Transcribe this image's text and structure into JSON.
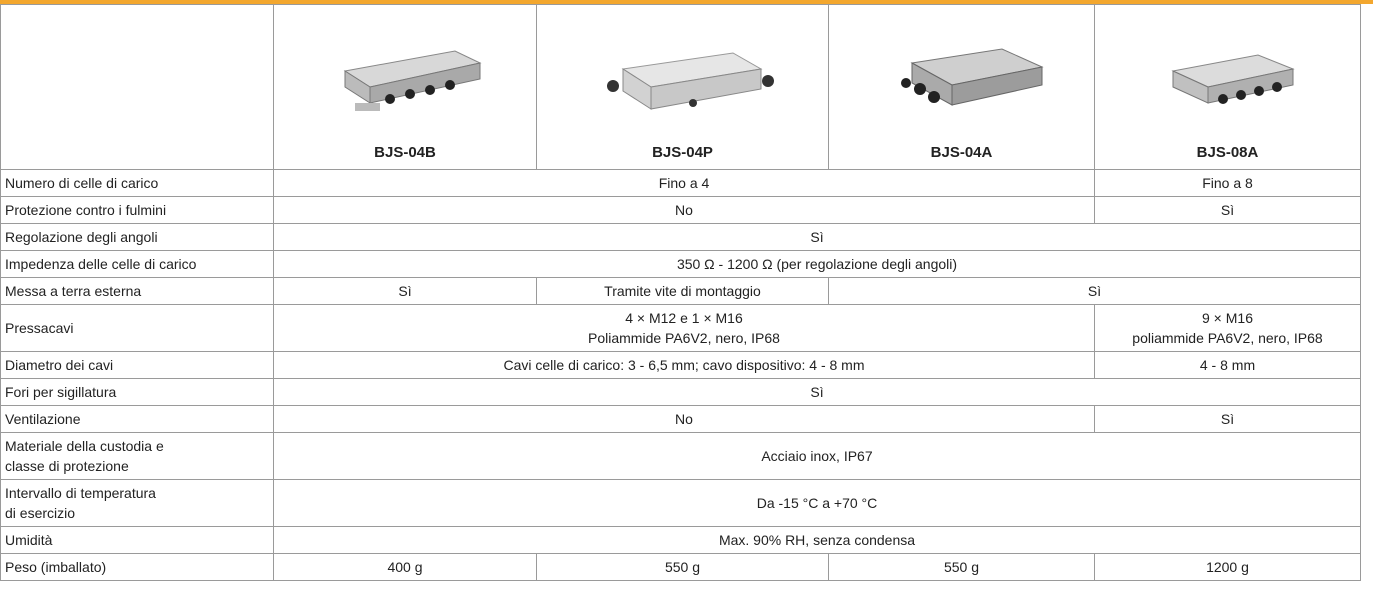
{
  "header": {
    "products": [
      "BJS-04B",
      "BJS-04P",
      "BJS-04A",
      "BJS-08A"
    ]
  },
  "rows": [
    {
      "label": [
        "Numero di celle di carico"
      ],
      "cells": [
        [
          "Fino a 4"
        ],
        [
          "Fino a 8"
        ]
      ]
    },
    {
      "label": [
        "Protezione contro i fulmini"
      ],
      "cells": [
        [
          "No"
        ],
        [
          "Sì"
        ]
      ]
    },
    {
      "label": [
        "Regolazione degli angoli"
      ],
      "cells": [
        [
          "Sì"
        ]
      ]
    },
    {
      "label": [
        "Impedenza delle celle di carico"
      ],
      "cells": [
        [
          "350 Ω - 1200 Ω (per regolazione degli angoli)"
        ]
      ]
    },
    {
      "label": [
        "Messa a terra esterna"
      ],
      "cells": [
        [
          "Sì"
        ],
        [
          "Tramite vite di montaggio"
        ],
        [
          "Sì"
        ]
      ]
    },
    {
      "label": [
        "Pressacavi"
      ],
      "cells": [
        [
          "4 × M12 e 1 × M16",
          "Poliammide PA6V2, nero, IP68"
        ],
        [
          "9 × M16",
          "poliammide PA6V2, nero, IP68"
        ]
      ]
    },
    {
      "label": [
        "Diametro dei cavi"
      ],
      "cells": [
        [
          "Cavi celle di carico: 3 - 6,5 mm; cavo dispositivo: 4 - 8 mm"
        ],
        [
          "4 - 8 mm"
        ]
      ]
    },
    {
      "label": [
        "Fori per sigillatura"
      ],
      "cells": [
        [
          "Sì"
        ]
      ]
    },
    {
      "label": [
        "Ventilazione"
      ],
      "cells": [
        [
          "No"
        ],
        [
          "Sì"
        ]
      ]
    },
    {
      "label": [
        "Materiale della custodia e",
        "classe di protezione"
      ],
      "cells": [
        [
          "Acciaio inox, IP67"
        ]
      ]
    },
    {
      "label": [
        "Intervallo di temperatura",
        "di esercizio"
      ],
      "cells": [
        [
          "Da -15 °C a +70 °C"
        ]
      ]
    },
    {
      "label": [
        "Umidità"
      ],
      "cells": [
        [
          "Max. 90% RH, senza condensa"
        ]
      ]
    },
    {
      "label": [
        "Peso (imballato)"
      ],
      "cells": [
        [
          "400 g"
        ],
        [
          "550 g"
        ],
        [
          "550 g"
        ],
        [
          "1200 g"
        ]
      ]
    }
  ]
}
